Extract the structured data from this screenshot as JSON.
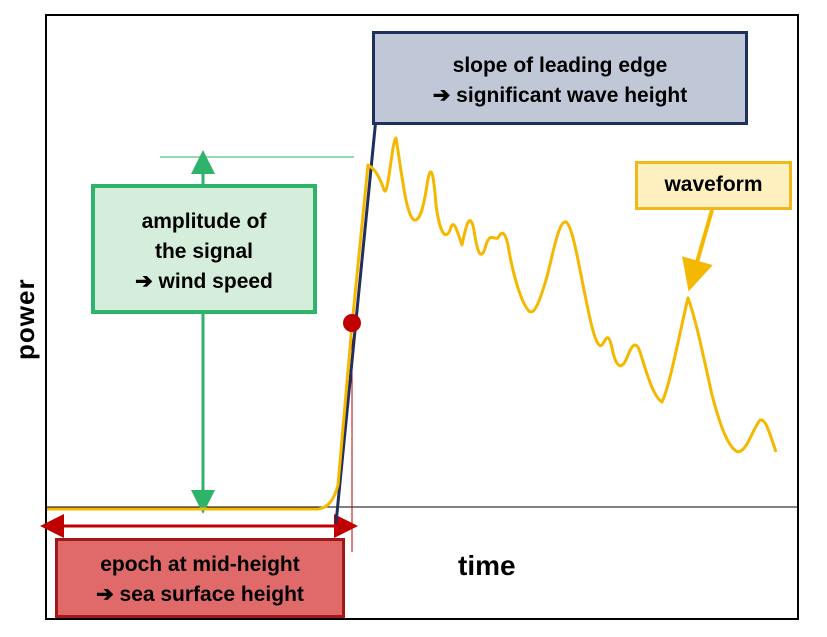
{
  "axes": {
    "y_label": "power",
    "x_label": "time"
  },
  "annotations": {
    "slope": {
      "line1": "slope of leading edge",
      "line2": "➔  significant wave height"
    },
    "amplitude": {
      "line1": "amplitude of",
      "line2": "the signal",
      "line3": "➔  wind speed"
    },
    "waveform": {
      "label": "waveform"
    },
    "epoch": {
      "line1": "epoch at mid-height",
      "line2": "➔  sea surface height"
    }
  },
  "colors": {
    "waveform": "#f5b800",
    "leading_edge": "#1f2f5e",
    "amplitude_arrow": "#2db36a",
    "epoch_arrow": "#c00000",
    "midpoint_marker": "#c00000"
  }
}
